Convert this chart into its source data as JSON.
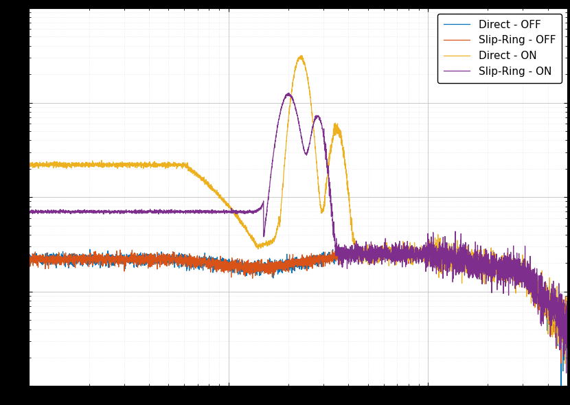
{
  "title": "",
  "xlabel": "",
  "ylabel": "",
  "legend_labels": [
    "Direct - OFF",
    "Slip-Ring - OFF",
    "Direct - ON",
    "Slip-Ring - ON"
  ],
  "colors": [
    "#0072BD",
    "#D95319",
    "#EDB120",
    "#7E2F8E"
  ],
  "background_color": "#ffffff",
  "grid_color": "#c0c0c0",
  "grid_color_minor": "#d8d8d8",
  "xlim": [
    1,
    500
  ],
  "ylim": [
    0.001,
    10.0
  ],
  "legend_loc": "upper right",
  "figsize": [
    8.3,
    5.9
  ],
  "dpi": 100
}
